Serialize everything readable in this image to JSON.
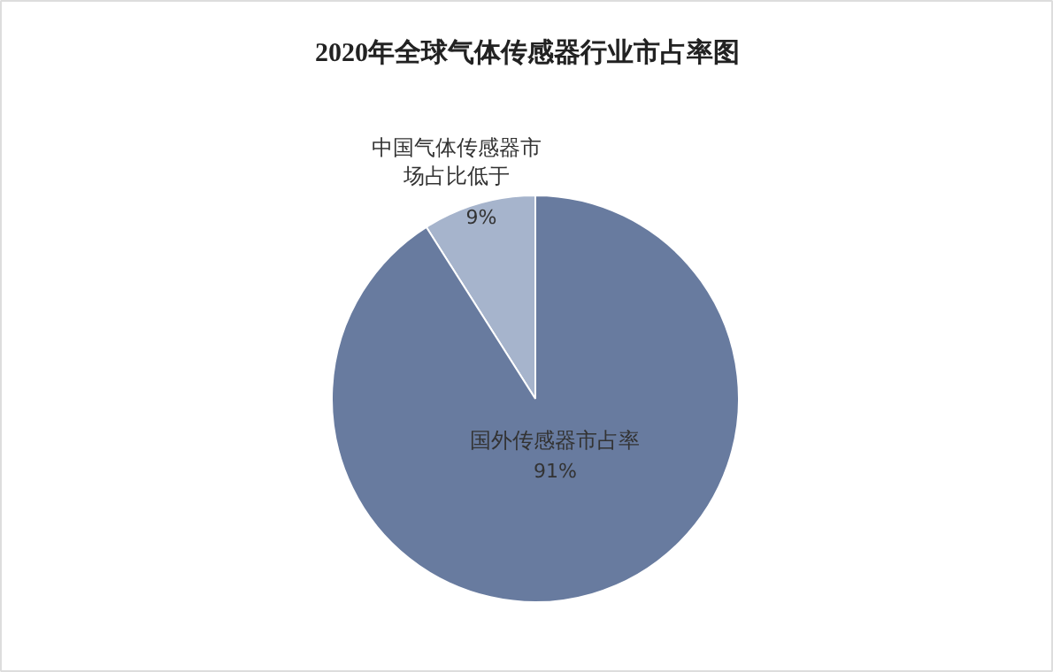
{
  "chart_data": {
    "type": "pie",
    "title": "2020年全球气体传感器行业市占率图",
    "categories": [
      "中国气体传感器市场占比低于",
      "国外传感器市占率"
    ],
    "values": [
      9,
      91
    ],
    "colors": [
      "#a6b4cc",
      "#687b9f"
    ],
    "value_labels": [
      "9%",
      "91%"
    ]
  }
}
